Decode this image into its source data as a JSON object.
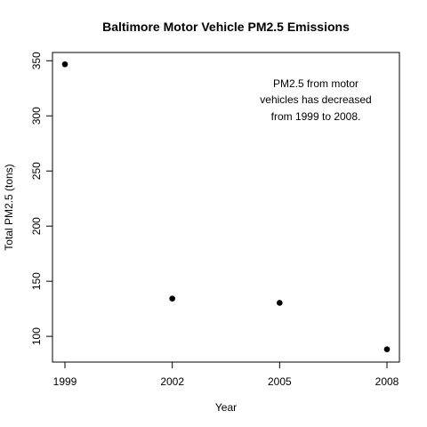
{
  "chart_data": {
    "type": "scatter",
    "title": "Baltimore Motor Vehicle PM2.5 Emissions",
    "xlabel": "Year",
    "ylabel": "Total PM2.5 (tons)",
    "x": [
      1999,
      2002,
      2005,
      2008
    ],
    "y": [
      346.8,
      134.3,
      130.4,
      88.3
    ],
    "xlim": [
      1999,
      2008
    ],
    "ylim": [
      88,
      347
    ],
    "x_ticks": [
      "1999",
      "2002",
      "2005",
      "2008"
    ],
    "y_ticks": [
      "100",
      "150",
      "200",
      "250",
      "300",
      "350"
    ],
    "annotation": {
      "lines": [
        "PM2.5 from motor",
        "vehicles has decreased",
        "from 1999 to 2008."
      ]
    },
    "grid": false,
    "point_color": "#000000"
  }
}
